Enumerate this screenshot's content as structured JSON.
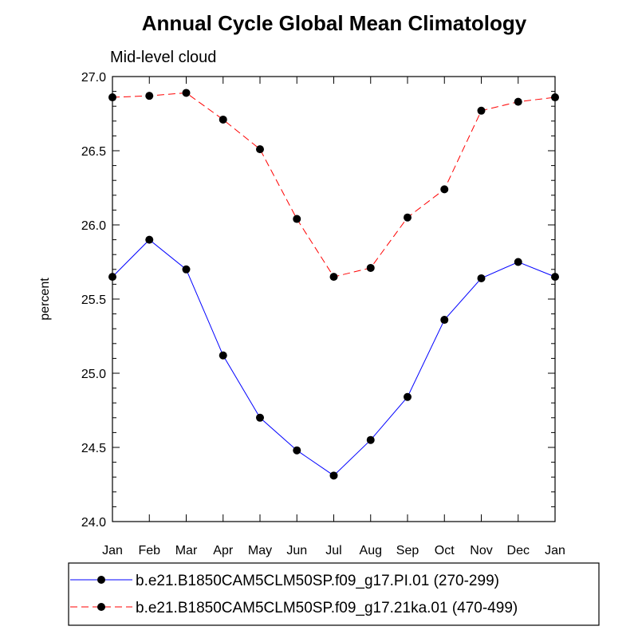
{
  "chart_data": {
    "type": "line",
    "title": "Annual Cycle Global Mean Climatology",
    "subtitle": "Mid-level cloud",
    "xlabel": "",
    "ylabel": "percent",
    "categories": [
      "Jan",
      "Feb",
      "Mar",
      "Apr",
      "May",
      "Jun",
      "Jul",
      "Aug",
      "Sep",
      "Oct",
      "Nov",
      "Dec",
      "Jan"
    ],
    "ylim": [
      24.0,
      27.0
    ],
    "yticks": [
      "24.0",
      "24.5",
      "25.0",
      "25.5",
      "26.0",
      "26.5",
      "27.0"
    ],
    "grid": false,
    "legend_position": "bottom",
    "series": [
      {
        "name": "b.e21.B1850CAM5CLM50SP.f09_g17.PI.01 (270-299)",
        "color": "#0000ff",
        "style": "solid",
        "marker": "circle",
        "values": [
          25.65,
          25.9,
          25.7,
          25.12,
          24.7,
          24.48,
          24.31,
          24.55,
          24.84,
          25.36,
          25.64,
          25.75,
          25.65
        ]
      },
      {
        "name": "b.e21.B1850CAM5CLM50SP.f09_g17.21ka.01 (470-499)",
        "color": "#ff0000",
        "style": "dashed",
        "marker": "circle",
        "values": [
          26.86,
          26.87,
          26.89,
          26.71,
          26.51,
          26.04,
          25.65,
          25.71,
          26.05,
          26.24,
          26.77,
          26.83,
          26.86
        ]
      }
    ]
  }
}
